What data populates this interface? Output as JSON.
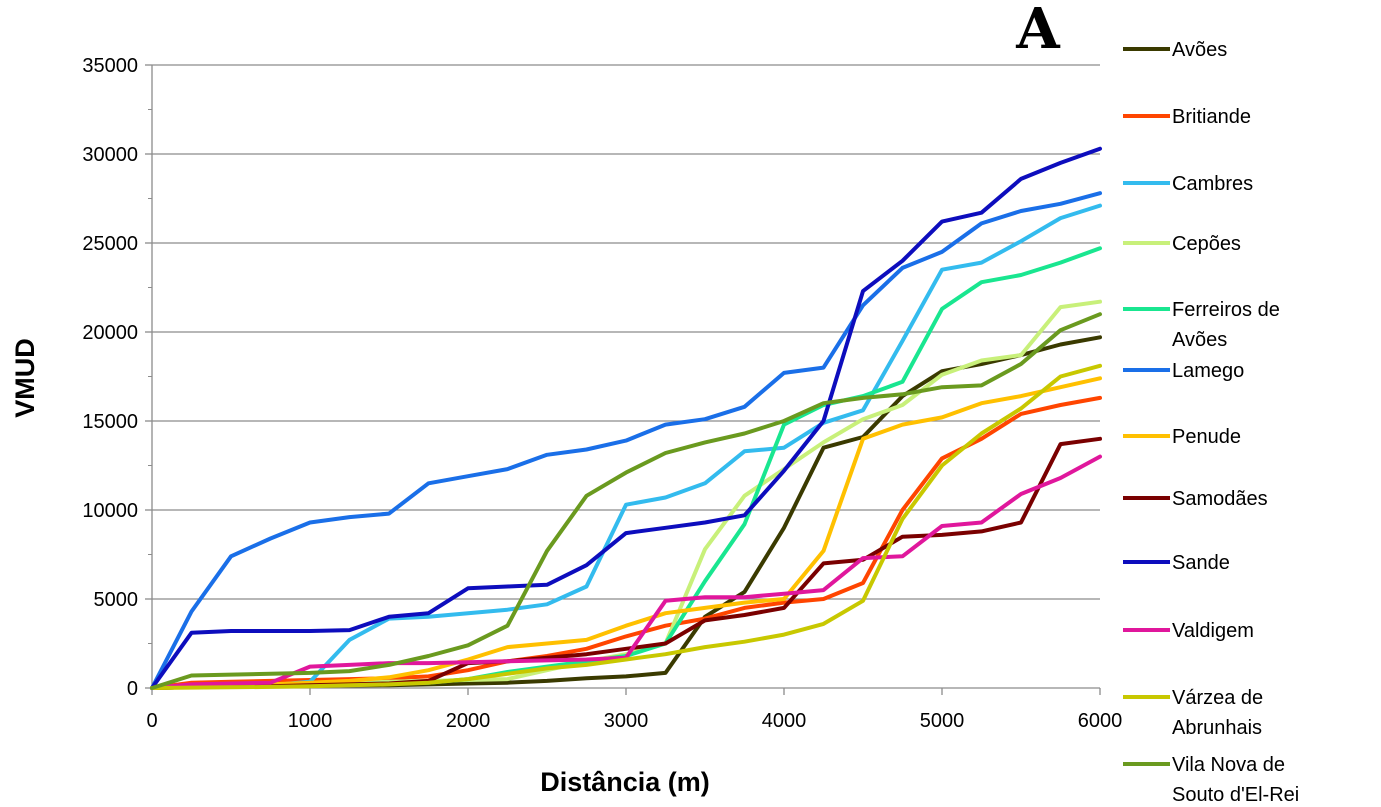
{
  "panel_label": "A",
  "chart_data": {
    "type": "line",
    "xlabel": "Distância (m)",
    "ylabel": "VMUD",
    "xlim": [
      0,
      6000
    ],
    "ylim": [
      0,
      35000
    ],
    "x_ticks": [
      "0",
      "1000",
      "2000",
      "3000",
      "4000",
      "5000",
      "6000"
    ],
    "y_ticks": [
      "0",
      "5000",
      "10000",
      "15000",
      "20000",
      "25000",
      "30000",
      "35000"
    ],
    "grid": "horizontal",
    "legend_position": "right",
    "x": [
      0,
      250,
      500,
      750,
      1000,
      1250,
      1500,
      1750,
      2000,
      2250,
      2500,
      2750,
      3000,
      3250,
      3500,
      3750,
      4000,
      4250,
      4500,
      4750,
      5000,
      5250,
      5500,
      5750,
      6000
    ],
    "series": [
      {
        "name": "Avões",
        "color": "#3a3a00",
        "values": [
          0,
          50,
          80,
          100,
          120,
          140,
          160,
          200,
          250,
          300,
          400,
          550,
          650,
          850,
          4000,
          5400,
          9000,
          13500,
          14100,
          16400,
          17800,
          18200,
          18700,
          19300,
          19700
        ]
      },
      {
        "name": "Britiande",
        "color": "#ff4500",
        "values": [
          0,
          300,
          350,
          400,
          450,
          500,
          550,
          650,
          1000,
          1500,
          1800,
          2200,
          2900,
          3500,
          3900,
          4500,
          4800,
          5000,
          5900,
          10000,
          12900,
          14000,
          15400,
          15900,
          16300
        ]
      },
      {
        "name": "Cambres",
        "color": "#33bbee",
        "values": [
          0,
          50,
          100,
          150,
          350,
          2700,
          3900,
          4000,
          4200,
          4400,
          4700,
          5700,
          10300,
          10700,
          11500,
          13300,
          13500,
          14900,
          15600,
          19500,
          23500,
          23900,
          25100,
          26400,
          27100
        ]
      },
      {
        "name": "Cepões",
        "color": "#c8f07a",
        "values": [
          0,
          100,
          150,
          200,
          250,
          300,
          350,
          400,
          450,
          500,
          1000,
          1500,
          1900,
          2500,
          7800,
          10800,
          12300,
          13800,
          15100,
          15900,
          17600,
          18400,
          18700,
          21400,
          21700
        ]
      },
      {
        "name": "Ferreiros de Avões",
        "color": "#19e690",
        "values": [
          0,
          50,
          80,
          100,
          150,
          200,
          250,
          300,
          500,
          900,
          1200,
          1500,
          1800,
          2500,
          6000,
          9200,
          14800,
          15900,
          16400,
          17200,
          21300,
          22800,
          23200,
          23900,
          24700
        ]
      },
      {
        "name": "Lamego",
        "color": "#1a6fe8",
        "values": [
          0,
          4300,
          7400,
          8400,
          9300,
          9600,
          9800,
          11500,
          11900,
          12300,
          13100,
          13400,
          13900,
          14800,
          15100,
          15800,
          17700,
          18000,
          21500,
          23600,
          24500,
          26100,
          26800,
          27200,
          27800
        ]
      },
      {
        "name": "Penude",
        "color": "#ffc000",
        "values": [
          0,
          50,
          100,
          200,
          300,
          400,
          600,
          1000,
          1600,
          2300,
          2500,
          2700,
          3500,
          4200,
          4500,
          4800,
          5000,
          7700,
          14000,
          14800,
          15200,
          16000,
          16400,
          16900,
          17400
        ]
      },
      {
        "name": "Samodães",
        "color": "#7a0000",
        "values": [
          0,
          50,
          80,
          100,
          150,
          200,
          250,
          400,
          1400,
          1500,
          1700,
          1900,
          2200,
          2500,
          3800,
          4100,
          4500,
          7000,
          7200,
          8500,
          8600,
          8800,
          9300,
          13700,
          14000
        ]
      },
      {
        "name": "Sande",
        "color": "#0d0dbd",
        "values": [
          0,
          3100,
          3200,
          3200,
          3200,
          3250,
          4000,
          4200,
          5600,
          5700,
          5800,
          6900,
          8700,
          9000,
          9300,
          9700,
          12200,
          15000,
          22300,
          24000,
          26200,
          26700,
          28600,
          29500,
          30300
        ]
      },
      {
        "name": "Valdigem",
        "color": "#e0179c",
        "values": [
          0,
          200,
          250,
          300,
          1200,
          1300,
          1400,
          1400,
          1450,
          1500,
          1550,
          1600,
          1700,
          4900,
          5100,
          5100,
          5300,
          5500,
          7300,
          7400,
          9100,
          9300,
          10900,
          11800,
          13000
        ]
      },
      {
        "name": "Várzea de Abrunhais",
        "color": "#c8c800",
        "values": [
          0,
          20,
          40,
          60,
          100,
          150,
          200,
          300,
          500,
          800,
          1100,
          1300,
          1600,
          1900,
          2300,
          2600,
          3000,
          3600,
          4900,
          9500,
          12500,
          14300,
          15700,
          17500,
          18100
        ]
      },
      {
        "name": "Vila Nova de Souto d'El-Rei",
        "color": "#6a9a1f",
        "values": [
          0,
          700,
          750,
          800,
          850,
          950,
          1300,
          1800,
          2400,
          3500,
          7700,
          10800,
          12100,
          13200,
          13800,
          14300,
          15000,
          16000,
          16300,
          16500,
          16900,
          17000,
          18200,
          20100,
          21000
        ]
      }
    ]
  }
}
